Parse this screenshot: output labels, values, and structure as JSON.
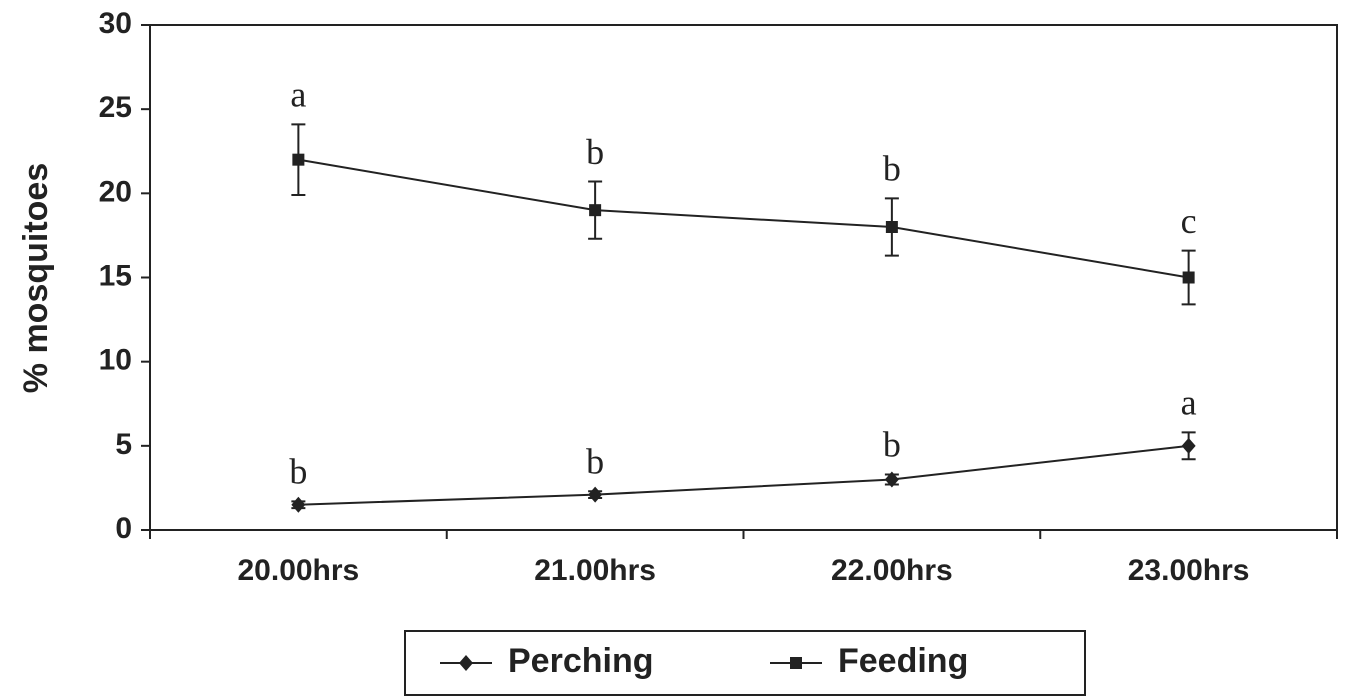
{
  "chart_data": {
    "type": "line",
    "y_label": "% mosquitoes",
    "categories": [
      "20.00hrs",
      "21.00hrs",
      "22.00hrs",
      "23.00hrs"
    ],
    "series": [
      {
        "name": "Perching",
        "color": "#222222",
        "marker": "diamond",
        "values": [
          1.5,
          2.1,
          3,
          5
        ],
        "errors": [
          0.2,
          0.2,
          0.3,
          0.8
        ],
        "labels": [
          "b",
          "b",
          "b",
          "a"
        ]
      },
      {
        "name": "Feeding",
        "color": "#222222",
        "marker": "square",
        "values": [
          22,
          19,
          18,
          15
        ],
        "errors": [
          2.1,
          1.7,
          1.7,
          1.6
        ],
        "labels": [
          "a",
          "b",
          "b",
          "c"
        ]
      }
    ],
    "ylim": [
      0,
      30
    ],
    "yticks": [
      0,
      5,
      10,
      15,
      20,
      25,
      30
    ],
    "legend": "bottom"
  }
}
